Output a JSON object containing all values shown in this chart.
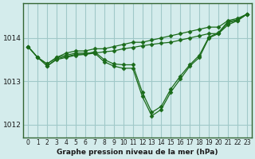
{
  "title": "Graphe pression niveau de la mer (hPa)",
  "background_color": "#d4ecec",
  "plot_bg_color": "#d4ecec",
  "grid_color": "#a0c8c8",
  "line_color": "#1a6b1a",
  "marker_color": "#1a6b1a",
  "xlim": [
    -0.5,
    23.5
  ],
  "ylim": [
    1011.7,
    1014.8
  ],
  "yticks": [
    1012,
    1013,
    1014
  ],
  "xticks": [
    0,
    1,
    2,
    3,
    4,
    5,
    6,
    7,
    8,
    9,
    10,
    11,
    12,
    13,
    14,
    15,
    16,
    17,
    18,
    19,
    20,
    21,
    22,
    23
  ],
  "series": [
    {
      "x": [
        0,
        1,
        2,
        3,
        4,
        5,
        6,
        7,
        8,
        9,
        10,
        11,
        12,
        13,
        14,
        15,
        16,
        17,
        18,
        19,
        20,
        21,
        22,
        23
      ],
      "y": [
        1013.8,
        1013.55,
        1013.4,
        1013.55,
        1013.6,
        1013.65,
        1013.65,
        1013.65,
        1013.45,
        1013.35,
        1013.3,
        1013.3,
        1012.65,
        1012.2,
        1012.35,
        1012.75,
        1013.05,
        1013.35,
        1013.55,
        1014.0,
        1014.1,
        1014.35,
        1014.4,
        1014.55
      ]
    },
    {
      "x": [
        0,
        1,
        2,
        3,
        4,
        5,
        6,
        7,
        8,
        9,
        10,
        11,
        12,
        13,
        14,
        15,
        16,
        17,
        18,
        19,
        20,
        21,
        22,
        23
      ],
      "y": [
        1013.8,
        1013.55,
        1013.4,
        1013.55,
        1013.65,
        1013.7,
        1013.7,
        1013.75,
        1013.75,
        1013.8,
        1013.85,
        1013.9,
        1013.9,
        1013.95,
        1014.0,
        1014.05,
        1014.1,
        1014.15,
        1014.2,
        1014.25,
        1014.25,
        1014.4,
        1014.45,
        1014.55
      ]
    },
    {
      "x": [
        0,
        1,
        2,
        3,
        4,
        5,
        6,
        7,
        8,
        9,
        10,
        11,
        12,
        13,
        14,
        15,
        16,
        17,
        18,
        19,
        20,
        21,
        22,
        23
      ],
      "y": [
        1013.8,
        1013.55,
        1013.35,
        1013.5,
        1013.55,
        1013.6,
        1013.62,
        1013.65,
        1013.68,
        1013.7,
        1013.75,
        1013.78,
        1013.82,
        1013.85,
        1013.88,
        1013.9,
        1013.95,
        1014.0,
        1014.05,
        1014.1,
        1014.1,
        1014.3,
        1014.4,
        1014.55
      ]
    },
    {
      "x": [
        2,
        3,
        4,
        5,
        6,
        7,
        8,
        9,
        10,
        11,
        12,
        13,
        14,
        15,
        16,
        17,
        18,
        19,
        20,
        21,
        22,
        23
      ],
      "y": [
        1013.35,
        1013.52,
        1013.57,
        1013.62,
        1013.63,
        1013.68,
        1013.5,
        1013.4,
        1013.38,
        1013.38,
        1012.75,
        1012.28,
        1012.42,
        1012.82,
        1013.12,
        1013.38,
        1013.6,
        1014.02,
        1014.12,
        1014.38,
        1014.42,
        1014.55
      ]
    }
  ]
}
